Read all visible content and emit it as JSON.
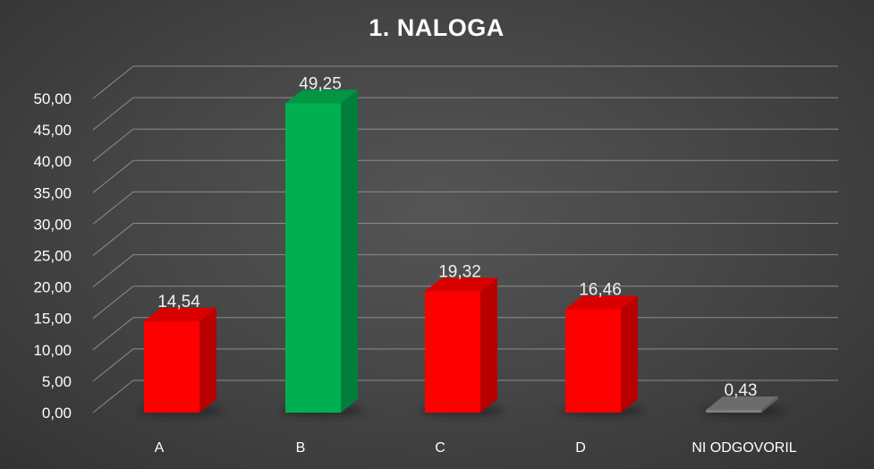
{
  "chart_data": {
    "type": "bar",
    "title": "1. NALOGA",
    "xlabel": "",
    "ylabel": "",
    "categories": [
      "A",
      "B",
      "C",
      "D",
      "NI ODGOVORIL"
    ],
    "values": [
      14.54,
      49.25,
      19.32,
      16.46,
      0.43
    ],
    "value_labels": [
      "14,54",
      "49,25",
      "19,32",
      "16,46",
      "0,43"
    ],
    "ylim": [
      0,
      50
    ],
    "y_ticks": [
      "0,00",
      "5,00",
      "10,00",
      "15,00",
      "20,00",
      "25,00",
      "30,00",
      "35,00",
      "40,00",
      "45,00",
      "50,00"
    ],
    "bar_colors": [
      "#ff0000",
      "#00b050",
      "#ff0000",
      "#ff0000",
      "#7f7f7f"
    ],
    "grid": true,
    "style": "3d-column"
  }
}
